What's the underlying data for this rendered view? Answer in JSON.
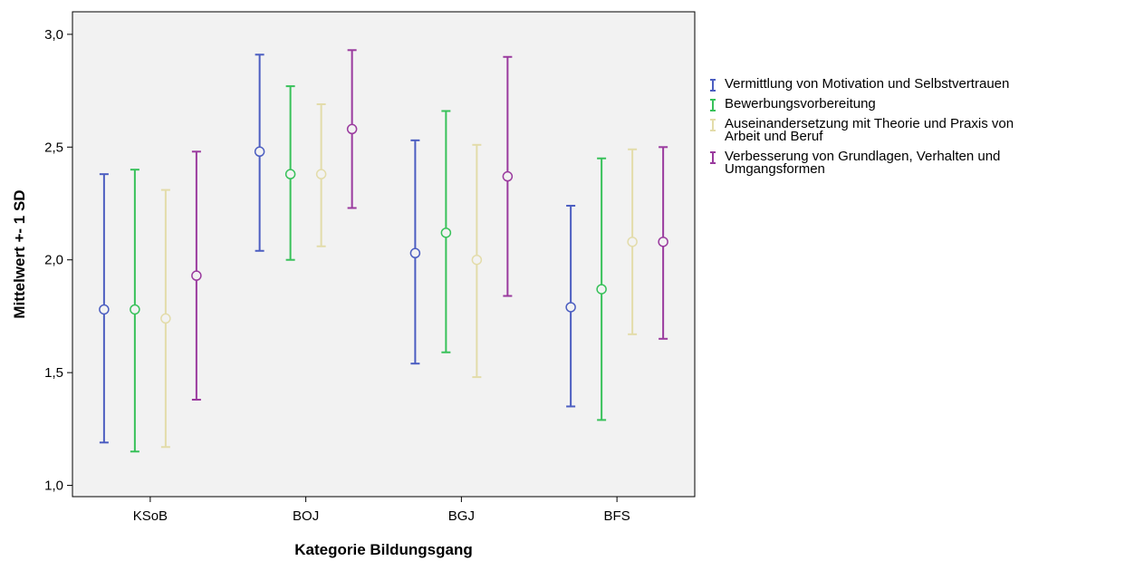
{
  "chart_data": {
    "type": "errorbar",
    "xlabel": "Kategorie Bildungsgang",
    "ylabel": "Mittelwert +- 1 SD",
    "categories": [
      "KSoB",
      "BOJ",
      "BGJ",
      "BFS"
    ],
    "ylim": [
      0.95,
      3.1
    ],
    "yticks": [
      1.0,
      1.5,
      2.0,
      2.5,
      3.0
    ],
    "ytick_labels": [
      "1,0",
      "1,5",
      "2,0",
      "2,5",
      "3,0"
    ],
    "grid": false,
    "legend_position": "right",
    "series": [
      {
        "name": "Vermittlung von Motivation und Selbstvertrauen",
        "color": "#4c5ec1",
        "mean": [
          1.78,
          2.48,
          2.03,
          1.79
        ],
        "lower": [
          1.19,
          2.04,
          1.54,
          1.35
        ],
        "upper": [
          2.38,
          2.91,
          2.53,
          2.24
        ]
      },
      {
        "name": "Bewerbungsvorbereitung",
        "color": "#38c15a",
        "mean": [
          1.78,
          2.38,
          2.12,
          1.87
        ],
        "lower": [
          1.15,
          2.0,
          1.59,
          1.29
        ],
        "upper": [
          2.4,
          2.77,
          2.66,
          2.45
        ]
      },
      {
        "name": "Auseinandersetzung mit Theorie und Praxis von Arbeit und Beruf",
        "color": "#e3dcaa",
        "mean": [
          1.74,
          2.38,
          2.0,
          2.08
        ],
        "lower": [
          1.17,
          2.06,
          1.48,
          1.67
        ],
        "upper": [
          2.31,
          2.69,
          2.51,
          2.49
        ]
      },
      {
        "name": "Verbesserung von Grundlagen, Verhalten und Umgangsformen",
        "color": "#9a3a9e",
        "mean": [
          1.93,
          2.58,
          2.37,
          2.08
        ],
        "lower": [
          1.38,
          2.23,
          1.84,
          1.65
        ],
        "upper": [
          2.48,
          2.93,
          2.9,
          2.5
        ]
      }
    ]
  }
}
